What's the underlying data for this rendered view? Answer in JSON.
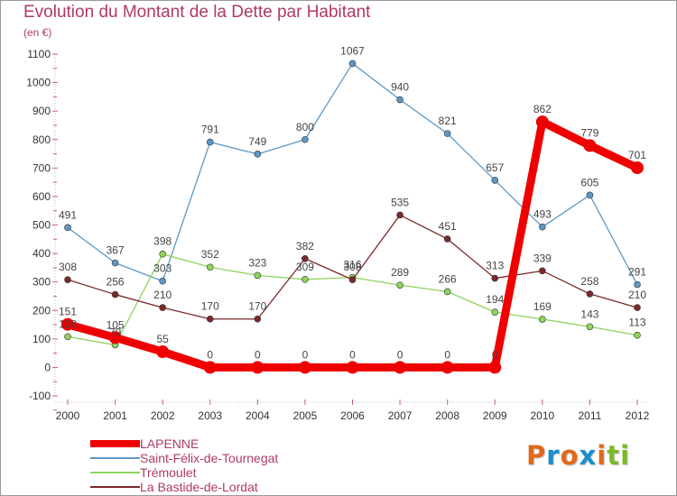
{
  "title": "Evolution du Montant de la Dette par Habitant",
  "subtitle": "(en €)",
  "logo": {
    "letters": [
      "P",
      "r",
      "o",
      "x",
      "i",
      "t",
      "i"
    ],
    "colors": [
      "#e06a1b",
      "#1d8fc9",
      "#e06a1b",
      "#1d8fc9",
      "#e06a1b",
      "#7bb928",
      "#7bb928"
    ]
  },
  "chart_data": {
    "type": "line",
    "x": [
      "2000",
      "2001",
      "2002",
      "2003",
      "2004",
      "2005",
      "2006",
      "2007",
      "2008",
      "2009",
      "2010",
      "2011",
      "2012"
    ],
    "ylim": [
      -100,
      1100
    ],
    "yticks": [
      "-100",
      "0",
      "100",
      "200",
      "300",
      "400",
      "500",
      "600",
      "700",
      "800",
      "900",
      "1000",
      "1100"
    ],
    "grid": false,
    "legend": "bottom-left",
    "series": [
      {
        "name": "LAPENNE",
        "color": "#ee0000",
        "values": [
          151,
          105,
          55,
          0,
          0,
          0,
          0,
          0,
          0,
          0,
          862,
          779,
          701
        ],
        "labels": [
          "151",
          "105",
          "55",
          "0",
          "0",
          "0",
          "0",
          "0",
          "0",
          "0",
          "862",
          "779",
          "701"
        ]
      },
      {
        "name": "Saint-Félix-de-Tournegat",
        "color": "#5d98c6",
        "values": [
          491,
          367,
          303,
          791,
          749,
          800,
          1067,
          940,
          821,
          657,
          493,
          605,
          291
        ],
        "labels": [
          "491",
          "367",
          "303",
          "791",
          "749",
          "800",
          "1067",
          "940",
          "821",
          "657",
          "493",
          "605",
          "291"
        ]
      },
      {
        "name": "Trémoulet",
        "color": "#8fd35c",
        "values": [
          108,
          79,
          398,
          352,
          323,
          309,
          316,
          289,
          266,
          194,
          169,
          143,
          113
        ],
        "labels": [
          "108",
          "79",
          "398",
          "352",
          "323",
          "309",
          "316",
          "289",
          "266",
          "194",
          "169",
          "143",
          "113"
        ]
      },
      {
        "name": "La Bastide-de-Lordat",
        "color": "#7a2a2a",
        "values": [
          308,
          256,
          210,
          170,
          170,
          382,
          308,
          535,
          451,
          313,
          339,
          258,
          210
        ],
        "labels": [
          "308",
          "256",
          "210",
          "170",
          "170",
          "382",
          "308",
          "535",
          "451",
          "313",
          "339",
          "258",
          "210"
        ]
      }
    ]
  }
}
